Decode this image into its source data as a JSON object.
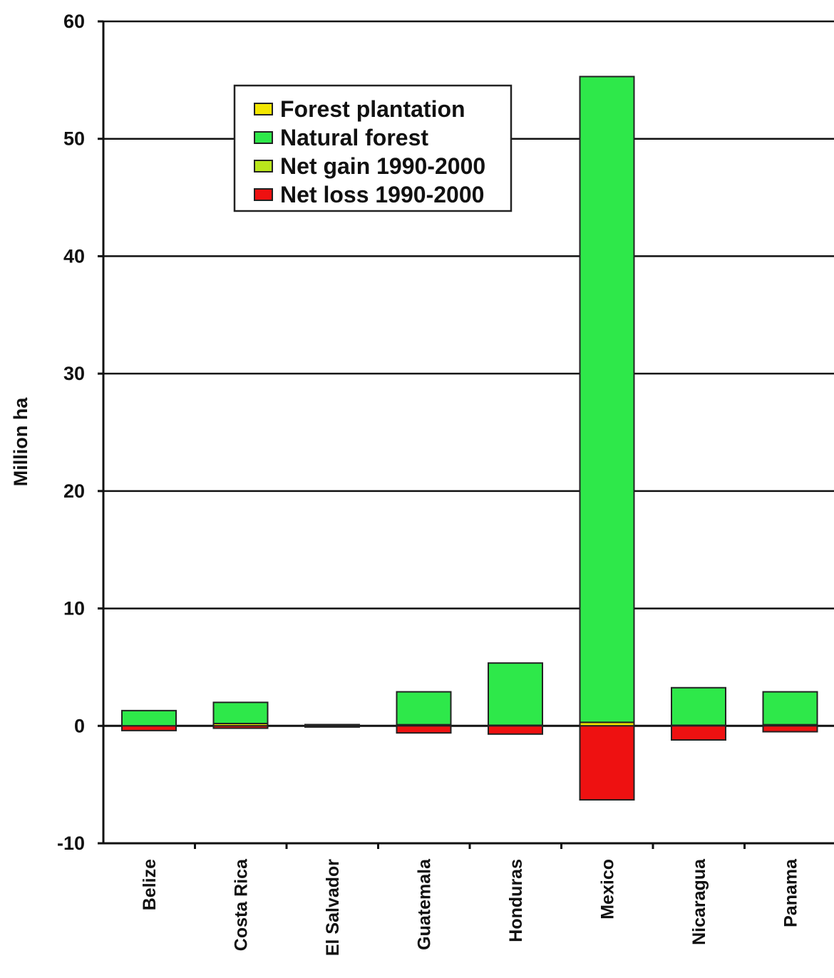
{
  "chart_data": {
    "type": "bar",
    "stacked": true,
    "title": "",
    "xlabel": "",
    "ylabel": "Million ha",
    "ylim": [
      -10,
      60
    ],
    "yticks": [
      "60",
      "50",
      "40",
      "30",
      "20",
      "10",
      "0",
      "-10"
    ],
    "ytick_values": [
      60,
      50,
      40,
      30,
      20,
      10,
      0,
      -10
    ],
    "grid": true,
    "legend_position": "top-left",
    "categories": [
      "Belize",
      "Costa Rica",
      "El Salvador",
      "Guatemala",
      "Honduras",
      "Mexico",
      "Nicaragua",
      "Panama"
    ],
    "series": [
      {
        "name": "Forest plantation",
        "color": "#f2e600",
        "values": [
          0.0,
          0.2,
          0.01,
          0.1,
          0.05,
          0.3,
          0.05,
          0.1
        ]
      },
      {
        "name": "Natural forest",
        "color": "#2ee84a",
        "values": [
          1.3,
          1.8,
          0.1,
          2.8,
          5.3,
          55.0,
          3.2,
          2.8
        ]
      },
      {
        "name": "Net gain 1990-2000",
        "color": "#b9e61c",
        "values": [
          0,
          0,
          0,
          0,
          0,
          0,
          0,
          0
        ]
      },
      {
        "name": "Net loss 1990-2000",
        "color": "#ee1111",
        "values": [
          -0.4,
          -0.2,
          -0.1,
          -0.6,
          -0.7,
          -6.3,
          -1.2,
          -0.5
        ]
      }
    ]
  }
}
